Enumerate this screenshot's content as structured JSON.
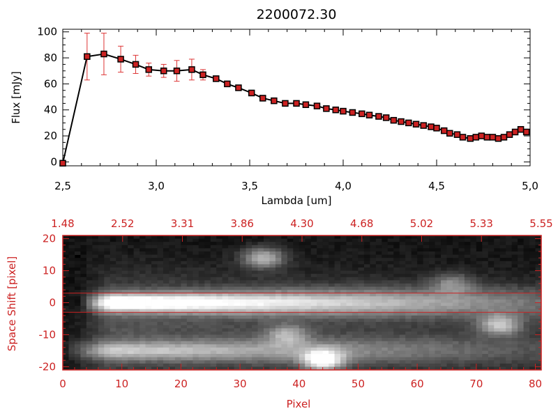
{
  "chart_data": [
    {
      "type": "line",
      "title": "2200072.30",
      "xlabel": "Lambda [um]",
      "ylabel": "Flux [mJy]",
      "xlim": [
        2.5,
        5.0
      ],
      "ylim": [
        -3,
        102
      ],
      "x_ticks": [
        "2.5",
        "3.0",
        "3.5",
        "4.0",
        "4.5",
        "5.0"
      ],
      "y_ticks": [
        "0",
        "20",
        "40",
        "60",
        "80",
        "100"
      ],
      "grid": false,
      "line_color": "#000000",
      "marker_color": "#cc2222",
      "errorbar_color": "#dd3333",
      "series": [
        {
          "x": [
            2.5,
            2.63,
            2.72,
            2.81,
            2.89,
            2.96,
            3.04,
            3.11,
            3.19,
            3.25,
            3.32,
            3.38,
            3.44,
            3.51,
            3.57,
            3.63,
            3.69,
            3.75,
            3.8,
            3.86,
            3.91,
            3.96,
            4.0,
            4.05,
            4.1,
            4.14,
            4.19,
            4.23,
            4.27,
            4.31,
            4.35,
            4.39,
            4.43,
            4.47,
            4.5,
            4.54,
            4.57,
            4.61,
            4.64,
            4.68,
            4.71,
            4.74,
            4.77,
            4.8,
            4.83,
            4.86,
            4.89,
            4.92,
            4.95,
            4.98
          ],
          "y": [
            -1,
            81,
            83,
            79,
            75,
            71,
            70,
            70,
            71,
            67,
            64,
            60,
            57,
            53,
            49,
            47,
            45,
            45,
            44,
            43,
            41,
            40,
            39,
            38,
            37,
            36,
            35,
            34,
            32,
            31,
            30,
            29,
            28,
            27,
            26,
            24,
            22,
            21,
            19,
            18,
            19,
            20,
            19,
            19,
            18,
            19,
            21,
            23,
            25,
            23
          ],
          "yerr": [
            0,
            18,
            16,
            10,
            7,
            5,
            5,
            8,
            8,
            4,
            2,
            2,
            1,
            1,
            1,
            1,
            1,
            1,
            1,
            1,
            1,
            1,
            1,
            1,
            1,
            1,
            1,
            1,
            1,
            1,
            1,
            1,
            1,
            1,
            1,
            1,
            1,
            1,
            1,
            1,
            1,
            1,
            1,
            1,
            1,
            1,
            1,
            1,
            1,
            1
          ]
        }
      ]
    },
    {
      "type": "heatmap",
      "xlabel": "Pixel",
      "ylabel": "Space Shift [pixel]",
      "xlim": [
        0,
        81
      ],
      "ylim": [
        -21,
        21
      ],
      "x_ticks": [
        "0",
        "10",
        "20",
        "30",
        "40",
        "50",
        "60",
        "70",
        "80"
      ],
      "y_ticks": [
        "-20",
        "-10",
        "0",
        "10",
        "20"
      ],
      "top_ticks": [
        "1.48",
        "2.52",
        "3.31",
        "3.86",
        "4.30",
        "4.68",
        "5.02",
        "5.33",
        "5.55"
      ],
      "extraction_band": [
        -3,
        3
      ],
      "colormap": "grayscale",
      "accent_color": "#cc2222",
      "features": [
        {
          "kind": "trace",
          "y": 0,
          "x_start": 3,
          "x_end": 81,
          "peak_x": 8,
          "peak_level": 1.0
        },
        {
          "kind": "trace",
          "y": -15,
          "x_start": 0,
          "x_end": 81,
          "peak_x": 8,
          "peak_level": 0.55
        },
        {
          "kind": "blob",
          "x": 34,
          "y": 14,
          "level": 0.6
        },
        {
          "kind": "blob",
          "x": 38,
          "y": -10,
          "level": 0.45
        },
        {
          "kind": "blob",
          "x": 44,
          "y": -18,
          "level": 0.85
        },
        {
          "kind": "blob",
          "x": 66,
          "y": 6,
          "level": 0.35
        },
        {
          "kind": "blob",
          "x": 74,
          "y": -7,
          "level": 0.6
        }
      ]
    }
  ]
}
